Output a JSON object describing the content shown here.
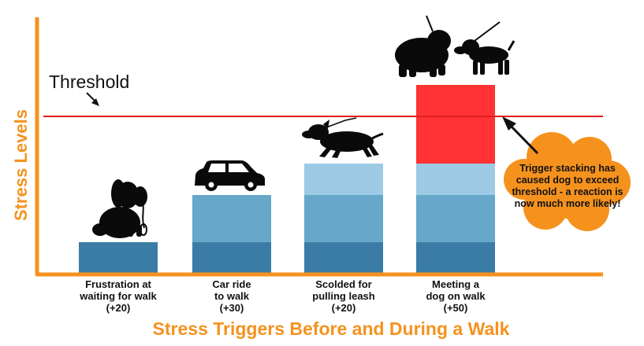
{
  "chart_data": {
    "type": "bar",
    "stacked": true,
    "xlabel": "Stress Triggers Before and During a Walk",
    "ylabel": "Stress Levels",
    "ylim": [
      0,
      120
    ],
    "threshold": {
      "label": "Threshold",
      "value": 100
    },
    "categories": [
      {
        "label_lines": [
          "Frustration at",
          "waiting for walk",
          "(+20)"
        ],
        "increment": 20,
        "icon": "sitting-dog-with-leash-icon"
      },
      {
        "label_lines": [
          "Car ride",
          "to walk",
          "(+30)"
        ],
        "increment": 30,
        "icon": "car-icon"
      },
      {
        "label_lines": [
          "Scolded for",
          "pulling leash",
          "(+20)"
        ],
        "increment": 20,
        "icon": "pulling-dog-on-leash-icon"
      },
      {
        "label_lines": [
          "Meeting a",
          "dog on walk",
          "(+50)"
        ],
        "increment": 50,
        "icon": "two-dogs-meeting-icon"
      }
    ],
    "series": [
      {
        "values": [
          20,
          20,
          20,
          20
        ],
        "color": "#3a7ca5"
      },
      {
        "values": [
          0,
          30,
          30,
          30
        ],
        "color": "#67a7c9"
      },
      {
        "values": [
          0,
          0,
          20,
          20
        ],
        "color": "#9dcae4"
      },
      {
        "values": [
          0,
          0,
          0,
          50
        ],
        "color": "#ff3333"
      }
    ],
    "cumulative_totals": [
      20,
      50,
      70,
      120
    ],
    "grid": false,
    "annotation": {
      "text_lines": [
        "Trigger stacking has",
        "caused dog to exceed",
        "threshold - a reaction is",
        "now much more likely!"
      ],
      "shape": "cloud",
      "color": "#f5921e",
      "placement": "right of last bar"
    }
  },
  "colors": {
    "axis": "#f5921e",
    "axis_title": "#f5921e",
    "threshold_line": "#e01e1e",
    "labels": "#111111",
    "icons": "#0a0a0a"
  }
}
